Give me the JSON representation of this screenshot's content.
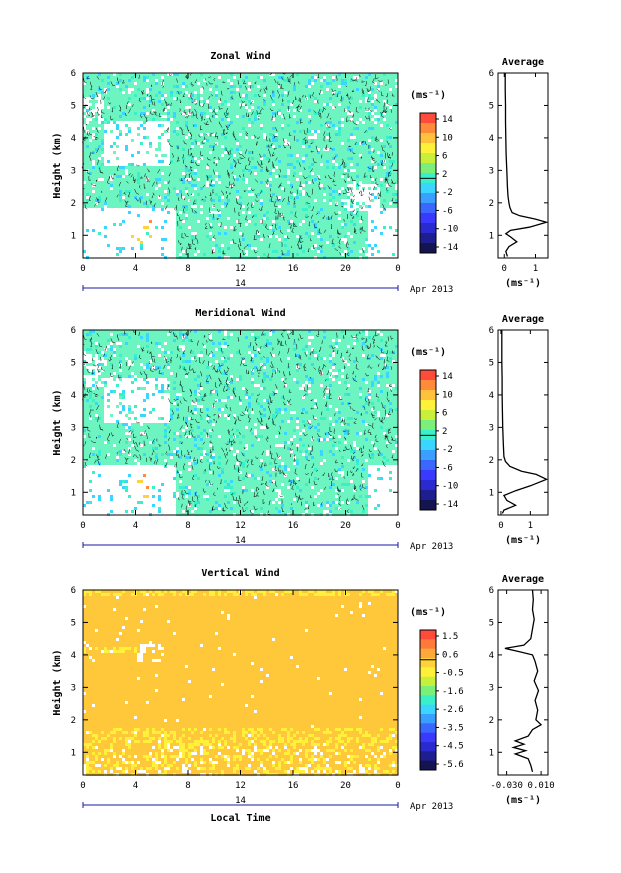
{
  "chart_data": [
    {
      "type": "heatmap",
      "title": "Zonal Wind",
      "ylabel": "Height (km)",
      "xlim": [
        0,
        24
      ],
      "ylim": [
        0.3,
        6
      ],
      "x_ticks": [
        "0",
        "4",
        "8",
        "12",
        "16",
        "20",
        "0"
      ],
      "y_ticks": [
        "1",
        "2",
        "3",
        "4",
        "5",
        "6"
      ],
      "date_axis": {
        "day": "14",
        "label": "Apr 2013"
      },
      "colorbar": {
        "unit": "(ms⁻¹)",
        "range": [
          -15,
          15
        ],
        "tick_labels": [
          "14",
          "10",
          "6",
          "2",
          "-2",
          "-6",
          "-10",
          "-14"
        ],
        "colors": [
          "#ff4b3a",
          "#ff8a3a",
          "#ffc23a",
          "#fff03a",
          "#c8f03a",
          "#7af07a",
          "#3af0c8",
          "#3ad6ff",
          "#3aa0ff",
          "#3a68ff",
          "#3a3aff",
          "#2a2ad0",
          "#1e1e90",
          "#141450"
        ]
      },
      "dominant_value": 1,
      "average": {
        "title": "Average",
        "x_ticks": [
          "0",
          "1"
        ],
        "xlim": [
          -0.2,
          1.4
        ],
        "xlabel": "(ms⁻¹)",
        "profile": [
          [
            0.1,
            0.35
          ],
          [
            0.05,
            0.5
          ],
          [
            0.15,
            0.65
          ],
          [
            0.4,
            0.8
          ],
          [
            0.2,
            0.95
          ],
          [
            0.05,
            1.05
          ],
          [
            0.2,
            1.15
          ],
          [
            0.8,
            1.25
          ],
          [
            1.35,
            1.4
          ],
          [
            1.0,
            1.5
          ],
          [
            0.5,
            1.6
          ],
          [
            0.25,
            1.7
          ],
          [
            0.18,
            1.85
          ],
          [
            0.15,
            2.0
          ],
          [
            0.12,
            2.2
          ],
          [
            0.1,
            2.5
          ],
          [
            0.08,
            3.0
          ],
          [
            0.06,
            3.5
          ],
          [
            0.05,
            4.0
          ],
          [
            0.04,
            4.5
          ],
          [
            0.04,
            5.0
          ],
          [
            0.03,
            5.5
          ],
          [
            0.03,
            6.0
          ]
        ]
      }
    },
    {
      "type": "heatmap",
      "title": "Meridional Wind",
      "ylabel": "Height (km)",
      "xlim": [
        0,
        24
      ],
      "ylim": [
        0.3,
        6
      ],
      "x_ticks": [
        "0",
        "4",
        "8",
        "12",
        "16",
        "20",
        "0"
      ],
      "y_ticks": [
        "1",
        "2",
        "3",
        "4",
        "5",
        "6"
      ],
      "date_axis": {
        "day": "14",
        "label": "Apr 2013"
      },
      "colorbar": {
        "unit": "(ms⁻¹)",
        "range": [
          -15,
          15
        ],
        "tick_labels": [
          "14",
          "10",
          "6",
          "2",
          "-2",
          "-6",
          "-10",
          "-14"
        ],
        "colors": [
          "#ff4b3a",
          "#ff8a3a",
          "#ffc23a",
          "#fff03a",
          "#c8f03a",
          "#7af07a",
          "#3af0c8",
          "#3ad6ff",
          "#3aa0ff",
          "#3a68ff",
          "#3a3aff",
          "#2a2ad0",
          "#1e1e90",
          "#141450"
        ]
      },
      "dominant_value": 1,
      "average": {
        "title": "Average",
        "x_ticks": [
          "0",
          "1"
        ],
        "xlim": [
          -0.1,
          1.6
        ],
        "xlabel": "(ms⁻¹)",
        "profile": [
          [
            0.05,
            0.35
          ],
          [
            0.1,
            0.45
          ],
          [
            0.5,
            0.6
          ],
          [
            0.2,
            0.75
          ],
          [
            0.1,
            0.9
          ],
          [
            0.5,
            1.05
          ],
          [
            1.0,
            1.2
          ],
          [
            1.55,
            1.4
          ],
          [
            1.2,
            1.55
          ],
          [
            0.7,
            1.65
          ],
          [
            0.3,
            1.8
          ],
          [
            0.15,
            1.95
          ],
          [
            0.1,
            2.1
          ],
          [
            0.08,
            2.5
          ],
          [
            0.06,
            3.0
          ],
          [
            0.05,
            3.5
          ],
          [
            0.04,
            4.0
          ],
          [
            0.04,
            4.5
          ],
          [
            0.03,
            5.0
          ],
          [
            0.03,
            5.5
          ],
          [
            0.03,
            6.0
          ]
        ]
      }
    },
    {
      "type": "heatmap",
      "title": "Vertical Wind",
      "ylabel": "Height (km)",
      "xlabel": "Local Time",
      "xlim": [
        0,
        24
      ],
      "ylim": [
        0.3,
        6
      ],
      "x_ticks": [
        "0",
        "4",
        "8",
        "12",
        "16",
        "20",
        "0"
      ],
      "y_ticks": [
        "1",
        "2",
        "3",
        "4",
        "5",
        "6"
      ],
      "date_axis": {
        "day": "14",
        "label": "Apr 2013"
      },
      "colorbar": {
        "unit": "(ms⁻¹)",
        "range": [
          -6,
          2
        ],
        "tick_labels": [
          "1.5",
          "0.6",
          "-0.5",
          "-1.6",
          "-2.6",
          "-3.5",
          "-4.5",
          "-5.6"
        ],
        "colors": [
          "#ff4b3a",
          "#ff7a3a",
          "#ffa83a",
          "#ffd23a",
          "#fff03a",
          "#c8f03a",
          "#7af07a",
          "#3af0c8",
          "#3ad6ff",
          "#3aa0ff",
          "#3a68ff",
          "#3a3aff",
          "#2a2ad0",
          "#1e1e90",
          "#141450"
        ]
      },
      "dominant_value": 0.3,
      "average": {
        "title": "Average",
        "x_ticks": [
          "-0.030",
          "0.010"
        ],
        "xlim": [
          -0.04,
          0.018
        ],
        "xlabel": "(ms⁻¹)",
        "profile": [
          [
            0.0,
            0.4
          ],
          [
            -0.002,
            0.6
          ],
          [
            -0.005,
            0.8
          ],
          [
            -0.02,
            0.95
          ],
          [
            -0.008,
            1.05
          ],
          [
            -0.022,
            1.15
          ],
          [
            -0.01,
            1.25
          ],
          [
            -0.02,
            1.35
          ],
          [
            -0.005,
            1.5
          ],
          [
            0.0,
            1.7
          ],
          [
            0.01,
            1.85
          ],
          [
            0.004,
            2.0
          ],
          [
            0.006,
            2.3
          ],
          [
            0.003,
            2.6
          ],
          [
            0.007,
            2.9
          ],
          [
            0.002,
            3.2
          ],
          [
            0.006,
            3.5
          ],
          [
            0.003,
            3.8
          ],
          [
            0.0,
            4.0
          ],
          [
            -0.015,
            4.1
          ],
          [
            -0.032,
            4.2
          ],
          [
            -0.01,
            4.3
          ],
          [
            -0.002,
            4.5
          ],
          [
            0.0,
            4.8
          ],
          [
            0.002,
            5.1
          ],
          [
            0.0,
            5.4
          ],
          [
            0.001,
            5.7
          ],
          [
            0.0,
            6.0
          ]
        ]
      }
    }
  ]
}
